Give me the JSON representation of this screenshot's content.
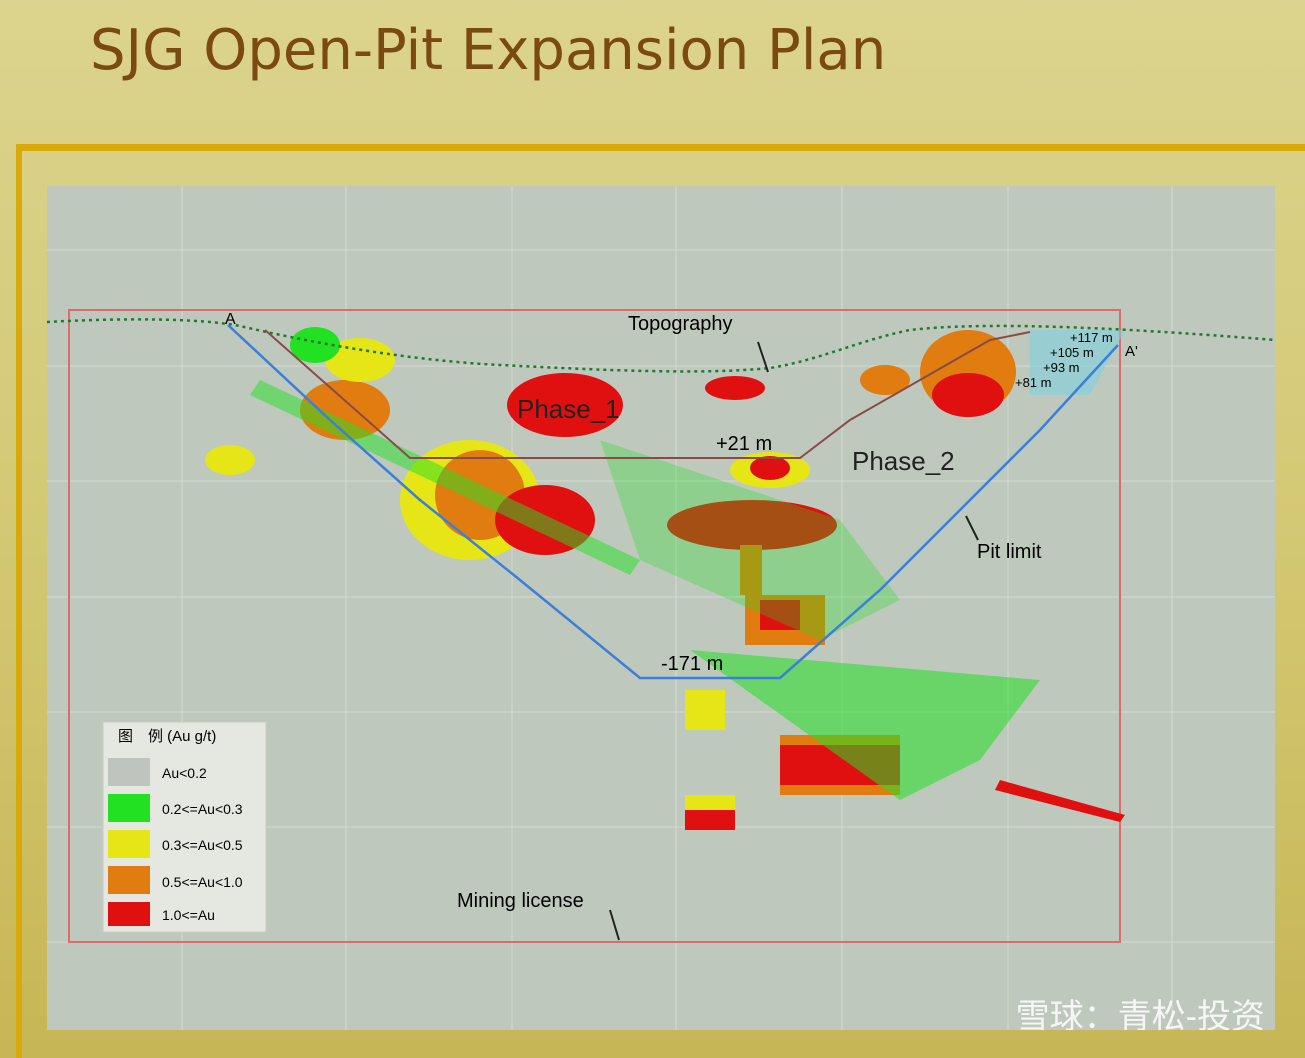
{
  "header": {
    "title": "SJG Open-Pit Expansion Plan"
  },
  "section": {
    "labels": {
      "a": "A",
      "a_prime": "A'",
      "topography": "Topography",
      "phase_1": "Phase_1",
      "phase_2": "Phase_2",
      "level_21": "+21 m",
      "level_minus_171": "-171 m",
      "pit_limit": "Pit limit",
      "mining_license": "Mining license",
      "level_117": "+117 m",
      "level_105": "+105 m",
      "level_93": "+93 m",
      "level_81": "+81 m"
    }
  },
  "legend": {
    "title": "图　例 (Au g/t)",
    "items": [
      "Au<0.2",
      "0.2<=Au<0.3",
      "0.3<=Au<0.5",
      "0.5<=Au<1.0",
      "1.0<=Au"
    ]
  },
  "watermark": "雪球：青松-投资"
}
